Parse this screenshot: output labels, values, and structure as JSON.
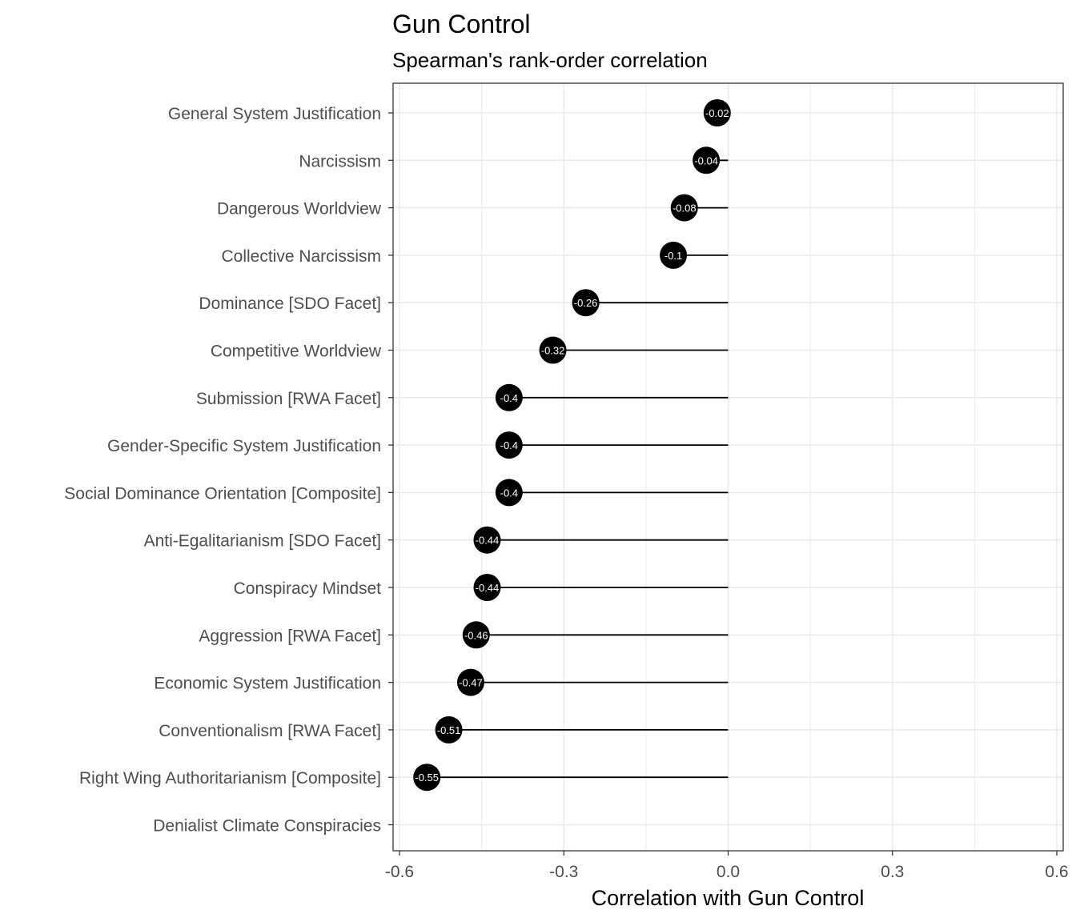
{
  "chart_data": {
    "type": "lollipop",
    "title": "Gun Control",
    "subtitle": "Spearman's rank-order correlation",
    "xlabel": "Correlation with Gun Control",
    "ylabel": "",
    "xlim": [
      -0.6,
      0.6
    ],
    "x_ticks": [
      -0.6,
      -0.3,
      0.0,
      0.3,
      0.6
    ],
    "x_tick_labels": [
      "-0.6",
      "-0.3",
      "0.0",
      "0.3",
      "0.6"
    ],
    "grid": true,
    "theme": "bw",
    "categories": [
      "General System Justification",
      "Narcissism",
      "Dangerous Worldview",
      "Collective Narcissism",
      "Dominance [SDO Facet]",
      "Competitive Worldview",
      "Submission [RWA Facet]",
      "Gender-Specific System Justification",
      "Social Dominance Orientation [Composite]",
      "Anti-Egalitarianism [SDO Facet]",
      "Conspiracy Mindset",
      "Aggression [RWA Facet]",
      "Economic System Justification",
      "Conventionalism [RWA Facet]",
      "Right Wing Authoritarianism [Composite]",
      "Denialist Climate Conspiracies"
    ],
    "values": [
      -0.02,
      -0.04,
      -0.08,
      -0.1,
      -0.26,
      -0.32,
      -0.4,
      -0.4,
      -0.4,
      -0.44,
      -0.44,
      -0.46,
      -0.47,
      -0.51,
      -0.55,
      null
    ],
    "value_labels": [
      "-0.02",
      "-0.04",
      "-0.08",
      "-0.1",
      "-0.26",
      "-0.32",
      "-0.4",
      "-0.4",
      "-0.4",
      "-0.44",
      "-0.44",
      "-0.46",
      "-0.47",
      "-0.51",
      "-0.55",
      ""
    ],
    "colors": {
      "point": "#000000",
      "stem": "#000000",
      "grid": "#ebebeb",
      "panel_border": "#333333",
      "tick_text": "#4d4d4d",
      "value_text": "#ffffff"
    }
  }
}
